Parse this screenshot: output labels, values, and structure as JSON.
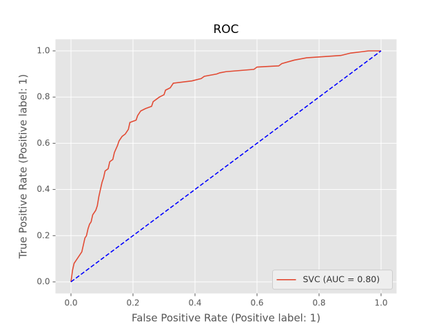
{
  "chart_data": {
    "type": "line",
    "title": "ROC",
    "xlabel": "False Positive Rate (Positive label: 1)",
    "ylabel": "True Positive Rate (Positive label: 1)",
    "xlim": [
      -0.05,
      1.05
    ],
    "ylim": [
      -0.05,
      1.05
    ],
    "xticks": [
      {
        "value": 0,
        "label": "0.0"
      },
      0.2,
      0.4,
      0.6,
      0.8,
      {
        "value": 1,
        "label": "1.0"
      }
    ],
    "yticks": [
      {
        "value": 0,
        "label": "0.0"
      },
      0.2,
      0.4,
      0.6,
      0.8,
      {
        "value": 1,
        "label": "1.0"
      }
    ],
    "grid": true,
    "legend": "lower right",
    "series": [
      {
        "name": "SVC (AUC = 0.80)",
        "color": "#E24A33",
        "linestyle": "solid",
        "x": [
          0,
          0.005,
          0.01,
          0.02,
          0.03,
          0.035,
          0.04,
          0.045,
          0.05,
          0.055,
          0.06,
          0.065,
          0.07,
          0.08,
          0.085,
          0.09,
          0.095,
          0.1,
          0.105,
          0.11,
          0.12,
          0.125,
          0.135,
          0.14,
          0.15,
          0.155,
          0.165,
          0.175,
          0.185,
          0.19,
          0.21,
          0.215,
          0.225,
          0.24,
          0.26,
          0.265,
          0.275,
          0.285,
          0.3,
          0.305,
          0.32,
          0.33,
          0.39,
          0.42,
          0.43,
          0.47,
          0.48,
          0.5,
          0.59,
          0.6,
          0.67,
          0.68,
          0.72,
          0.76,
          0.87,
          0.9,
          0.96,
          1.0
        ],
        "values": [
          0,
          0.05,
          0.08,
          0.1,
          0.12,
          0.13,
          0.16,
          0.19,
          0.2,
          0.23,
          0.25,
          0.26,
          0.29,
          0.31,
          0.33,
          0.37,
          0.4,
          0.43,
          0.45,
          0.48,
          0.49,
          0.52,
          0.53,
          0.56,
          0.59,
          0.61,
          0.63,
          0.64,
          0.66,
          0.69,
          0.7,
          0.72,
          0.74,
          0.75,
          0.76,
          0.78,
          0.79,
          0.8,
          0.81,
          0.83,
          0.84,
          0.86,
          0.87,
          0.88,
          0.89,
          0.9,
          0.905,
          0.91,
          0.92,
          0.93,
          0.935,
          0.945,
          0.96,
          0.97,
          0.98,
          0.99,
          1.0,
          1.0
        ]
      },
      {
        "color": "#0000ff",
        "linestyle": "dashed",
        "x": [
          0,
          1
        ],
        "values": [
          0,
          1
        ]
      }
    ]
  }
}
